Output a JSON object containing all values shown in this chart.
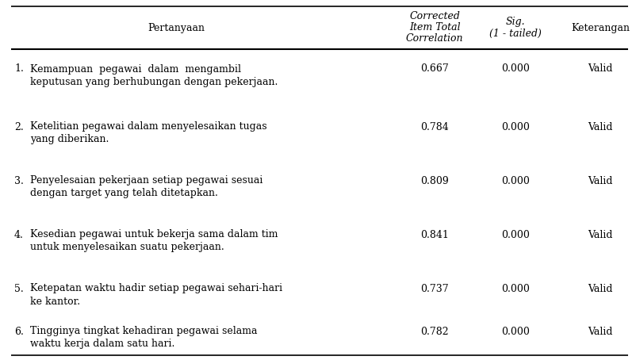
{
  "rows": [
    {
      "num": "1.",
      "pertanyaan_line1": "Kemampuan  pegawai  dalam  mengambil",
      "pertanyaan_line2": "keputusan yang berhubungan dengan pekerjaan.",
      "correlation": "0.667",
      "sig": "0.000",
      "keterangan": "Valid"
    },
    {
      "num": "2.",
      "pertanyaan_line1": "Ketelitian pegawai dalam menyelesaikan tugas",
      "pertanyaan_line2": "yang diberikan.",
      "correlation": "0.784",
      "sig": "0.000",
      "keterangan": "Valid"
    },
    {
      "num": "3.",
      "pertanyaan_line1": "Penyelesaian pekerjaan setiap pegawai sesuai",
      "pertanyaan_line2": "dengan target yang telah ditetapkan.",
      "correlation": "0.809",
      "sig": "0.000",
      "keterangan": "Valid"
    },
    {
      "num": "4.",
      "pertanyaan_line1": "Kesedian pegawai untuk bekerja sama dalam tim",
      "pertanyaan_line2": "untuk menyelesaikan suatu pekerjaan.",
      "correlation": "0.841",
      "sig": "0.000",
      "keterangan": "Valid"
    },
    {
      "num": "5.",
      "pertanyaan_line1": "Ketepatan waktu hadir setiap pegawai sehari-hari",
      "pertanyaan_line2": "ke kantor.",
      "correlation": "0.737",
      "sig": "0.000",
      "keterangan": "Valid"
    },
    {
      "num": "6.",
      "pertanyaan_line1": "Tingginya tingkat kehadiran pegawai selama",
      "pertanyaan_line2": "waktu kerja dalam satu hari.",
      "correlation": "0.782",
      "sig": "0.000",
      "keterangan": "Valid"
    }
  ],
  "header_col1": "Pertanyaan",
  "header_col2_line1": "Corrected",
  "header_col2_line2": "Item Total",
  "header_col2_line3": "Correlation",
  "header_col3_line1": "Sig.",
  "header_col3_line2": "(1 - tailed)",
  "header_col4": "Keterangan",
  "bg_color": "#ffffff",
  "text_color": "#000000",
  "font_size": 9.0,
  "header_font_size": 9.0
}
